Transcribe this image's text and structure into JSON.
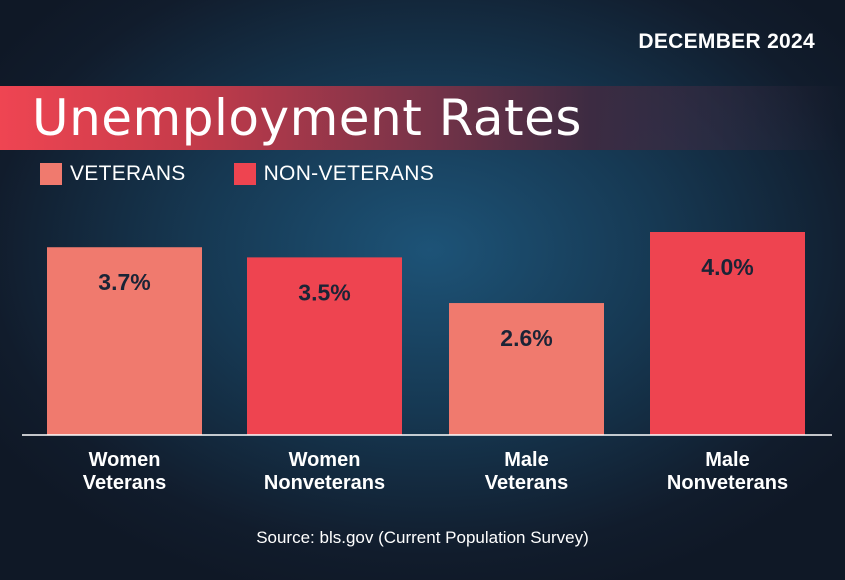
{
  "date_label": "DECEMBER 2024",
  "title": "Unemployment Rates",
  "legend": [
    {
      "label": "VETERANS",
      "color": "#f07a6e"
    },
    {
      "label": "NON-VETERANS",
      "color": "#ee4450"
    }
  ],
  "chart_data": {
    "type": "bar",
    "title": "Unemployment Rates",
    "categories": [
      [
        "Women",
        "Veterans"
      ],
      [
        "Women",
        "Nonveterans"
      ],
      [
        "Male",
        "Veterans"
      ],
      [
        "Male",
        "Nonveterans"
      ]
    ],
    "values": [
      3.7,
      3.5,
      2.6,
      4.0
    ],
    "value_labels": [
      "3.7%",
      "3.5%",
      "2.6%",
      "4.0%"
    ],
    "bar_groups": [
      "VETERANS",
      "NON-VETERANS",
      "VETERANS",
      "NON-VETERANS"
    ],
    "colors": {
      "VETERANS": "#f07a6e",
      "NON-VETERANS": "#ee4450"
    },
    "ylim": [
      0,
      4.0
    ],
    "grid": false,
    "legend_position": "top-left"
  },
  "source": "Source: bls.gov (Current Population Survey)"
}
